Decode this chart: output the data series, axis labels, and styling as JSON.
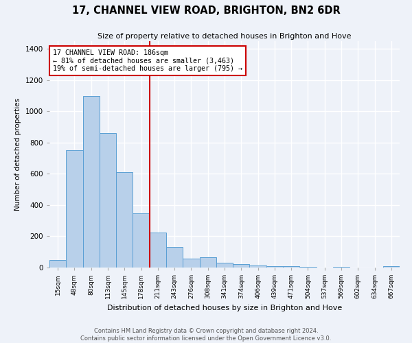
{
  "title": "17, CHANNEL VIEW ROAD, BRIGHTON, BN2 6DR",
  "subtitle": "Size of property relative to detached houses in Brighton and Hove",
  "xlabel": "Distribution of detached houses by size in Brighton and Hove",
  "ylabel": "Number of detached properties",
  "footer_line1": "Contains HM Land Registry data © Crown copyright and database right 2024.",
  "footer_line2": "Contains public sector information licensed under the Open Government Licence v3.0.",
  "bar_labels": [
    "15sqm",
    "48sqm",
    "80sqm",
    "113sqm",
    "145sqm",
    "178sqm",
    "211sqm",
    "243sqm",
    "276sqm",
    "308sqm",
    "341sqm",
    "374sqm",
    "406sqm",
    "439sqm",
    "471sqm",
    "504sqm",
    "537sqm",
    "569sqm",
    "602sqm",
    "634sqm",
    "667sqm"
  ],
  "bar_values": [
    50,
    750,
    1100,
    860,
    610,
    345,
    225,
    130,
    55,
    65,
    30,
    20,
    15,
    10,
    10,
    5,
    0,
    5,
    0,
    0,
    10
  ],
  "bar_color": "#b8d0ea",
  "bar_edge_color": "#5a9fd4",
  "property_line_x": 5.5,
  "property_line_label": "17 CHANNEL VIEW ROAD: 186sqm",
  "annotation_line1": "← 81% of detached houses are smaller (3,463)",
  "annotation_line2": "19% of semi-detached houses are larger (795) →",
  "annotation_box_color": "#ffffff",
  "annotation_box_edge_color": "#cc0000",
  "property_line_color": "#cc0000",
  "ylim": [
    0,
    1450
  ],
  "yticks": [
    0,
    200,
    400,
    600,
    800,
    1000,
    1200,
    1400
  ],
  "bg_color": "#eef2f9",
  "grid_color": "#ffffff"
}
